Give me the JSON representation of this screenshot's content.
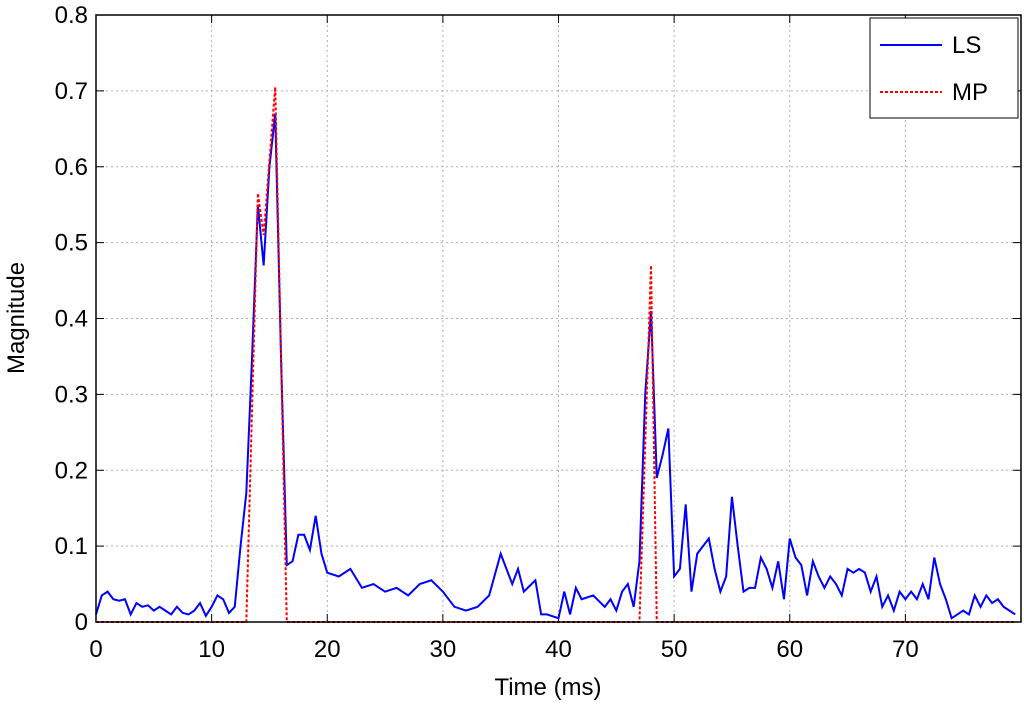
{
  "chart_data": {
    "type": "line",
    "xlabel": "Time (ms)",
    "ylabel": "Magnitude",
    "xlim": [
      0,
      80
    ],
    "xticks": [
      0,
      10,
      20,
      30,
      40,
      50,
      60,
      70
    ],
    "ylim": [
      0,
      0.8
    ],
    "yticks": [
      0,
      0.1,
      0.2,
      0.3,
      0.4,
      0.5,
      0.6,
      0.7,
      0.8
    ],
    "grid": true,
    "legend": "upper right",
    "series": [
      {
        "name": "LS",
        "color": "#0000ff",
        "style": "solid",
        "x": [
          0,
          0.5,
          1,
          1.5,
          2,
          2.5,
          3,
          3.5,
          4,
          4.5,
          5,
          5.5,
          6,
          6.5,
          7,
          7.5,
          8,
          8.5,
          9,
          9.5,
          10,
          10.5,
          11,
          11.5,
          12,
          12.5,
          13,
          13.5,
          14,
          14.5,
          15,
          15.5,
          16,
          16.5,
          17,
          17.5,
          18,
          18.5,
          19,
          19.5,
          20,
          21,
          22,
          23,
          24,
          25,
          26,
          27,
          28,
          29,
          30,
          31,
          32,
          33,
          34,
          35,
          36,
          36.5,
          37,
          38,
          38.5,
          39,
          40,
          40.5,
          41,
          41.5,
          42,
          43,
          44,
          44.5,
          45,
          45.5,
          46,
          46.5,
          47,
          47.5,
          48,
          48.5,
          49,
          49.5,
          50,
          50.5,
          51,
          51.5,
          52,
          52.5,
          53,
          53.5,
          54,
          54.5,
          55,
          55.5,
          56,
          56.5,
          57,
          57.5,
          58,
          58.5,
          59,
          59.5,
          60,
          60.5,
          61,
          61.5,
          62,
          62.5,
          63,
          63.5,
          64,
          64.5,
          65,
          65.5,
          66,
          66.5,
          67,
          67.5,
          68,
          68.5,
          69,
          69.5,
          70,
          70.5,
          71,
          71.5,
          72,
          72.5,
          73,
          73.5,
          74,
          74.5,
          75,
          75.5,
          76,
          76.5,
          77,
          77.5,
          78,
          78.5,
          79,
          79.5
        ],
        "values": [
          0.01,
          0.035,
          0.04,
          0.03,
          0.028,
          0.03,
          0.01,
          0.025,
          0.02,
          0.022,
          0.015,
          0.02,
          0.015,
          0.01,
          0.02,
          0.012,
          0.01,
          0.015,
          0.025,
          0.008,
          0.02,
          0.035,
          0.03,
          0.012,
          0.02,
          0.1,
          0.17,
          0.35,
          0.55,
          0.47,
          0.6,
          0.67,
          0.35,
          0.075,
          0.08,
          0.115,
          0.115,
          0.095,
          0.14,
          0.09,
          0.065,
          0.06,
          0.07,
          0.045,
          0.05,
          0.04,
          0.045,
          0.035,
          0.05,
          0.055,
          0.04,
          0.02,
          0.015,
          0.02,
          0.035,
          0.09,
          0.05,
          0.07,
          0.04,
          0.055,
          0.01,
          0.01,
          0.005,
          0.04,
          0.01,
          0.045,
          0.03,
          0.035,
          0.02,
          0.03,
          0.015,
          0.04,
          0.05,
          0.02,
          0.08,
          0.3,
          0.41,
          0.19,
          0.22,
          0.255,
          0.06,
          0.07,
          0.155,
          0.04,
          0.09,
          0.1,
          0.11,
          0.07,
          0.04,
          0.06,
          0.165,
          0.1,
          0.04,
          0.045,
          0.045,
          0.085,
          0.07,
          0.045,
          0.08,
          0.03,
          0.11,
          0.085,
          0.075,
          0.035,
          0.08,
          0.06,
          0.045,
          0.06,
          0.05,
          0.035,
          0.07,
          0.065,
          0.07,
          0.065,
          0.04,
          0.06,
          0.02,
          0.035,
          0.015,
          0.04,
          0.03,
          0.04,
          0.03,
          0.05,
          0.03,
          0.085,
          0.05,
          0.03,
          0.005,
          0.01,
          0.015,
          0.01,
          0.035,
          0.02,
          0.035,
          0.025,
          0.03,
          0.02,
          0.015,
          0.01
        ]
      },
      {
        "name": "MP",
        "color": "#ff0000",
        "style": "dashed",
        "x": [
          0,
          13,
          14,
          14.5,
          15.5,
          16.5,
          47,
          48,
          48.5,
          79.5
        ],
        "values": [
          0,
          0,
          0.565,
          0.51,
          0.705,
          0,
          0,
          0.47,
          0,
          0
        ]
      }
    ]
  }
}
